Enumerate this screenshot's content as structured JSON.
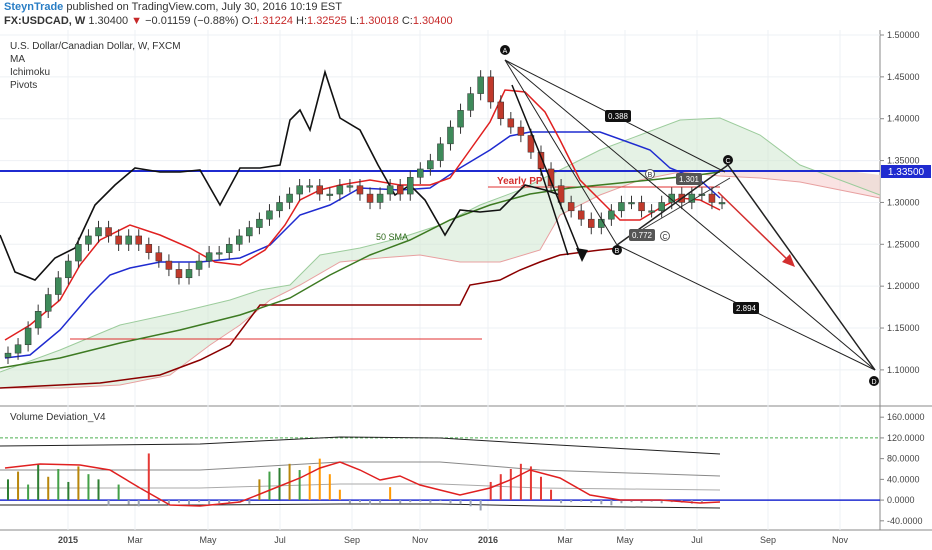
{
  "header": {
    "author": "SteynTrade",
    "published_text": "published on TradingView.com, July 30, 2016 10:19 EST",
    "symbol": "FX:USDCAD, W",
    "price": "1.30400",
    "change_arrow": "▼",
    "change": "−0.01159 (−0.88%)",
    "open_label": "O:",
    "open": "1.31224",
    "high_label": "H:",
    "high": "1.32525",
    "low_label": "L:",
    "low": "1.30018",
    "close_label": "C:",
    "close": "1.30400"
  },
  "legend": {
    "title": "U.S. Dollar/Canadian Dollar, W, FXCM",
    "studies": [
      "MA",
      "Ichimoku",
      "Pivots"
    ]
  },
  "volume_pane_label": "Volume Deviation_V4",
  "price_badge": "1.33500",
  "annotations": {
    "yearly_pp": "Yearly PP",
    "sma": "50 SMA",
    "ratio1": "0.388",
    "ratio2": "2.894",
    "ratio3": "1.301",
    "ratio4": "0.772",
    "pt_a": "A",
    "pt_b": "B",
    "pt_c": "C",
    "pt_d": "D",
    "pt_b2": "B",
    "pt_c2": "C"
  },
  "chart_data": [
    {
      "type": "line",
      "pane": "price",
      "y_ticks": [
        "1.50000",
        "1.45000",
        "1.40000",
        "1.35000",
        "1.30000",
        "1.25000",
        "1.20000",
        "1.15000",
        "1.10000"
      ],
      "y_values": [
        1.5,
        1.45,
        1.4,
        1.35,
        1.3,
        1.25,
        1.2,
        1.15,
        1.1
      ],
      "ylim": [
        1.07,
        1.5
      ],
      "x_ticks": [
        "2015",
        "Mar",
        "May",
        "Jul",
        "Sep",
        "Nov",
        "2016",
        "Mar",
        "May",
        "Jul",
        "Sep",
        "Nov"
      ],
      "close_series": [
        1.12,
        1.13,
        1.15,
        1.17,
        1.19,
        1.21,
        1.23,
        1.25,
        1.26,
        1.27,
        1.26,
        1.25,
        1.26,
        1.25,
        1.24,
        1.23,
        1.22,
        1.21,
        1.22,
        1.23,
        1.24,
        1.24,
        1.25,
        1.26,
        1.27,
        1.28,
        1.29,
        1.3,
        1.31,
        1.32,
        1.32,
        1.31,
        1.31,
        1.32,
        1.32,
        1.31,
        1.3,
        1.31,
        1.32,
        1.31,
        1.33,
        1.34,
        1.35,
        1.37,
        1.39,
        1.41,
        1.43,
        1.45,
        1.42,
        1.4,
        1.39,
        1.38,
        1.36,
        1.34,
        1.32,
        1.3,
        1.29,
        1.28,
        1.27,
        1.28,
        1.29,
        1.3,
        1.3,
        1.29,
        1.29,
        1.3,
        1.31,
        1.3,
        1.31,
        1.31,
        1.3,
        1.3
      ],
      "lagging_line_note": "black line = Ichimoku lagging span",
      "levels": {
        "blue_horizontal": 1.335,
        "red_horizontal": 1.13,
        "yearly_pp": 1.315
      },
      "abcd_pattern": {
        "A": [
          "2016-01",
          1.47
        ],
        "B": [
          "2016-05",
          1.25
        ],
        "C": [
          "2016-07",
          1.335
        ],
        "D": [
          "2016-11",
          1.09
        ]
      }
    },
    {
      "type": "bar",
      "pane": "volume",
      "title": "Volume Deviation_V4",
      "y_ticks": [
        "160.0000",
        "120.0000",
        "80.0000",
        "40.0000",
        "0.0000",
        "-40.0000"
      ],
      "y_values": [
        160,
        120,
        80,
        40,
        0,
        -40
      ],
      "ylim": [
        -50,
        170
      ]
    }
  ]
}
